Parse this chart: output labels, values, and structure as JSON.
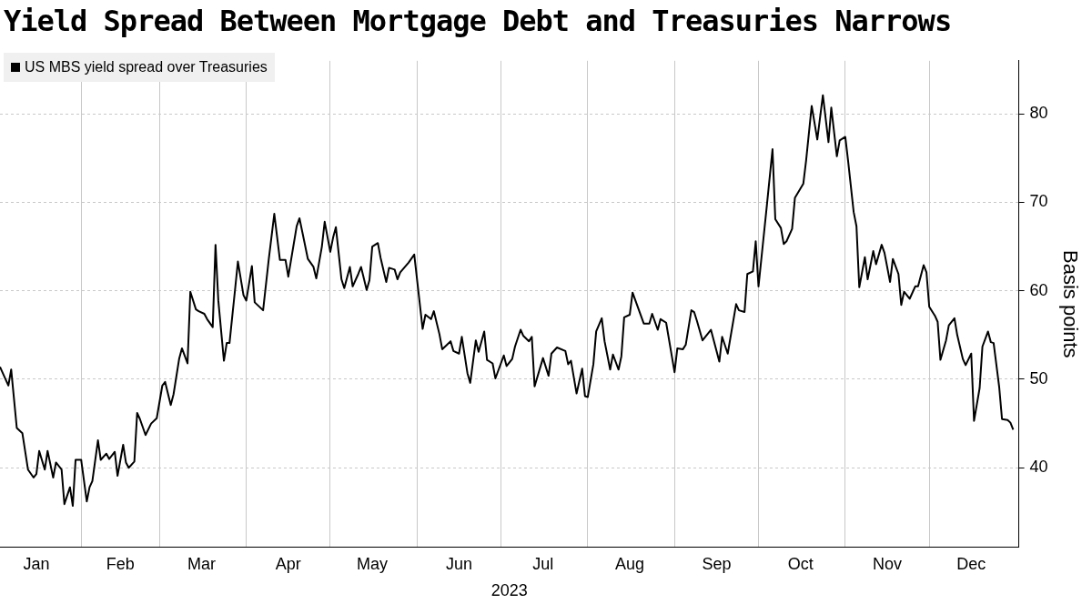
{
  "chart_data": {
    "type": "line",
    "title": "Yield Spread Between Mortgage Debt and Treasuries Narrows",
    "xlabel": "2023",
    "ylabel": "Basis points",
    "legend": "top left",
    "grid": true,
    "xlim": [
      "2023-01-03",
      "2024-01-02"
    ],
    "ylim": [
      31,
      86
    ],
    "yticks": [
      40,
      50,
      60,
      70,
      80
    ],
    "xticks": [
      {
        "value": "2023-01-16",
        "label": "Jan"
      },
      {
        "value": "2023-02-01",
        "label": null
      },
      {
        "value": "2023-02-15",
        "label": "Feb"
      },
      {
        "value": "2023-03-01",
        "label": null
      },
      {
        "value": "2023-03-16",
        "label": "Mar"
      },
      {
        "value": "2023-04-01",
        "label": null
      },
      {
        "value": "2023-04-16",
        "label": "Apr"
      },
      {
        "value": "2023-05-01",
        "label": null
      },
      {
        "value": "2023-05-16",
        "label": "May"
      },
      {
        "value": "2023-06-01",
        "label": null
      },
      {
        "value": "2023-06-16",
        "label": "Jun"
      },
      {
        "value": "2023-07-01",
        "label": null
      },
      {
        "value": "2023-07-16",
        "label": "Jul"
      },
      {
        "value": "2023-08-01",
        "label": null
      },
      {
        "value": "2023-08-16",
        "label": "Aug"
      },
      {
        "value": "2023-09-01",
        "label": null
      },
      {
        "value": "2023-09-16",
        "label": "Sep"
      },
      {
        "value": "2023-10-01",
        "label": null
      },
      {
        "value": "2023-10-16",
        "label": "Oct"
      },
      {
        "value": "2023-11-01",
        "label": null
      },
      {
        "value": "2023-11-16",
        "label": "Nov"
      },
      {
        "value": "2023-12-01",
        "label": null
      },
      {
        "value": "2023-12-16",
        "label": "Dec"
      }
    ],
    "x": [
      "2023-01-03",
      "2023-01-06",
      "2023-01-07",
      "2023-01-09",
      "2023-01-11",
      "2023-01-13",
      "2023-01-15",
      "2023-01-16",
      "2023-01-17",
      "2023-01-19",
      "2023-01-20",
      "2023-01-22",
      "2023-01-23",
      "2023-01-25",
      "2023-01-26",
      "2023-01-28",
      "2023-01-29",
      "2023-01-30",
      "2023-02-01",
      "2023-02-03",
      "2023-02-04",
      "2023-02-05",
      "2023-02-07",
      "2023-02-08",
      "2023-02-10",
      "2023-02-11",
      "2023-02-13",
      "2023-02-14",
      "2023-02-16",
      "2023-02-17",
      "2023-02-18",
      "2023-02-20",
      "2023-02-21",
      "2023-02-22",
      "2023-02-24",
      "2023-02-26",
      "2023-02-28",
      "2023-03-02",
      "2023-03-03",
      "2023-03-05",
      "2023-03-06",
      "2023-03-08",
      "2023-03-09",
      "2023-03-11",
      "2023-03-12",
      "2023-03-14",
      "2023-03-15",
      "2023-03-17",
      "2023-03-18",
      "2023-03-20",
      "2023-03-21",
      "2023-03-22",
      "2023-03-24",
      "2023-03-25",
      "2023-03-26",
      "2023-03-28",
      "2023-03-29",
      "2023-03-31",
      "2023-04-01",
      "2023-04-03",
      "2023-04-04",
      "2023-04-07",
      "2023-04-09",
      "2023-04-11",
      "2023-04-13",
      "2023-04-15",
      "2023-04-16",
      "2023-04-19",
      "2023-04-20",
      "2023-04-23",
      "2023-04-25",
      "2023-04-26",
      "2023-04-28",
      "2023-04-29",
      "2023-05-01",
      "2023-05-02",
      "2023-05-03",
      "2023-05-05",
      "2023-05-06",
      "2023-05-08",
      "2023-05-09",
      "2023-05-11",
      "2023-05-12",
      "2023-05-14",
      "2023-05-15",
      "2023-05-16",
      "2023-05-18",
      "2023-05-19",
      "2023-05-21",
      "2023-05-22",
      "2023-05-24",
      "2023-05-25",
      "2023-05-26",
      "2023-05-29",
      "2023-05-31",
      "2023-06-03",
      "2023-06-04",
      "2023-06-06",
      "2023-06-07",
      "2023-06-09",
      "2023-06-10",
      "2023-06-13",
      "2023-06-14",
      "2023-06-16",
      "2023-06-17",
      "2023-06-19",
      "2023-06-20",
      "2023-06-22",
      "2023-06-23",
      "2023-06-25",
      "2023-06-26",
      "2023-06-28",
      "2023-06-29",
      "2023-07-02",
      "2023-07-03",
      "2023-07-05",
      "2023-07-06",
      "2023-07-08",
      "2023-07-09",
      "2023-07-11",
      "2023-07-12",
      "2023-07-13",
      "2023-07-16",
      "2023-07-18",
      "2023-07-19",
      "2023-07-21",
      "2023-07-24",
      "2023-07-25",
      "2023-07-26",
      "2023-07-28",
      "2023-07-30",
      "2023-07-31",
      "2023-08-01",
      "2023-08-03",
      "2023-08-04",
      "2023-08-06",
      "2023-08-07",
      "2023-08-09",
      "2023-08-10",
      "2023-08-12",
      "2023-08-13",
      "2023-08-14",
      "2023-08-16",
      "2023-08-17",
      "2023-08-21",
      "2023-08-23",
      "2023-08-24",
      "2023-08-26",
      "2023-08-27",
      "2023-08-29",
      "2023-09-01",
      "2023-09-02",
      "2023-09-04",
      "2023-09-05",
      "2023-09-07",
      "2023-09-08",
      "2023-09-09",
      "2023-09-11",
      "2023-09-14",
      "2023-09-17",
      "2023-09-18",
      "2023-09-20",
      "2023-09-23",
      "2023-09-24",
      "2023-09-26",
      "2023-09-27",
      "2023-09-29",
      "2023-09-30",
      "2023-10-01",
      "2023-10-04",
      "2023-10-06",
      "2023-10-07",
      "2023-10-09",
      "2023-10-10",
      "2023-10-11",
      "2023-10-13",
      "2023-10-14",
      "2023-10-17",
      "2023-10-18",
      "2023-10-20",
      "2023-10-22",
      "2023-10-24",
      "2023-10-26",
      "2023-10-27",
      "2023-10-29",
      "2023-10-30",
      "2023-11-01",
      "2023-11-02",
      "2023-11-04",
      "2023-11-05",
      "2023-11-06",
      "2023-11-08",
      "2023-11-09",
      "2023-11-11",
      "2023-11-12",
      "2023-11-14",
      "2023-11-15",
      "2023-11-17",
      "2023-11-18",
      "2023-11-20",
      "2023-11-21",
      "2023-11-22",
      "2023-11-24",
      "2023-11-26",
      "2023-11-27",
      "2023-11-29",
      "2023-11-30",
      "2023-12-01",
      "2023-12-03",
      "2023-12-04",
      "2023-12-05",
      "2023-12-07",
      "2023-12-08",
      "2023-12-10",
      "2023-12-11",
      "2023-12-13",
      "2023-12-14",
      "2023-12-16",
      "2023-12-17",
      "2023-12-19",
      "2023-12-20",
      "2023-12-22",
      "2023-12-23",
      "2023-12-24",
      "2023-12-26",
      "2023-12-27",
      "2023-12-29",
      "2023-12-30",
      "2023-12-31"
    ],
    "series": [
      {
        "name": "US MBS yield spread over Treasuries",
        "color": "#000000",
        "values": [
          51.4,
          49.3,
          51.1,
          44.5,
          43.9,
          39.8,
          38.9,
          39.3,
          41.9,
          39.8,
          41.9,
          38.9,
          40.6,
          39.8,
          35.9,
          37.8,
          35.7,
          40.9,
          40.9,
          36.2,
          37.8,
          38.5,
          43.1,
          40.9,
          41.6,
          41.0,
          41.8,
          39.1,
          42.6,
          40.6,
          40.0,
          40.7,
          46.2,
          45.5,
          43.7,
          45.0,
          45.6,
          49.3,
          49.7,
          47.1,
          48.3,
          52.3,
          53.5,
          51.8,
          59.9,
          57.9,
          57.7,
          57.4,
          56.8,
          55.9,
          65.2,
          58.9,
          52.1,
          54.1,
          54.1,
          60.2,
          63.3,
          59.5,
          58.9,
          62.8,
          58.7,
          57.8,
          63.5,
          68.7,
          63.5,
          63.5,
          61.6,
          67.3,
          68.2,
          63.6,
          62.7,
          61.4,
          65.0,
          67.8,
          64.4,
          66.0,
          67.2,
          61.3,
          60.3,
          62.7,
          60.5,
          61.9,
          62.7,
          60.1,
          61.2,
          65.0,
          65.4,
          63.7,
          61.0,
          62.6,
          62.4,
          61.3,
          62.1,
          63.2,
          64.1,
          55.7,
          57.3,
          56.8,
          57.7,
          55.1,
          53.4,
          54.3,
          53.2,
          52.9,
          54.8,
          50.7,
          49.6,
          54.4,
          53.1,
          55.4,
          52.2,
          51.8,
          50.1,
          52.7,
          51.5,
          52.3,
          53.7,
          55.6,
          54.9,
          54.3,
          54.8,
          49.2,
          52.4,
          50.4,
          52.9,
          53.6,
          53.2,
          51.7,
          52.1,
          48.4,
          51.2,
          48.1,
          48.0,
          51.7,
          55.4,
          56.9,
          54.3,
          51.1,
          52.8,
          51.1,
          52.6,
          57.0,
          57.3,
          59.8,
          56.3,
          56.3,
          57.4,
          55.6,
          56.8,
          56.4,
          50.8,
          53.5,
          53.4,
          53.9,
          57.8,
          57.6,
          56.6,
          54.4,
          55.6,
          52.0,
          54.8,
          52.9,
          58.5,
          57.8,
          57.6,
          61.9,
          62.2,
          65.6,
          60.5,
          69.7,
          76.0,
          68.1,
          67.1,
          65.3,
          65.6,
          67.0,
          70.5,
          72.1,
          74.7,
          80.9,
          77.1,
          82.1,
          76.8,
          80.7,
          75.2,
          77.0,
          77.4,
          74.7,
          68.9,
          67.3,
          60.4,
          63.8,
          61.3,
          64.5,
          63.0,
          65.2,
          64.3,
          61.0,
          63.6,
          61.9,
          58.4,
          59.9,
          59.1,
          60.5,
          60.5,
          62.9,
          62.1,
          58.2,
          57.2,
          56.5,
          52.2,
          54.4,
          56.1,
          56.9,
          55.0,
          52.3,
          51.6,
          52.9,
          45.3,
          49.0,
          53.7,
          55.4,
          54.2,
          54.1,
          49.1,
          45.5,
          45.4,
          45.1,
          44.3
        ]
      }
    ]
  }
}
